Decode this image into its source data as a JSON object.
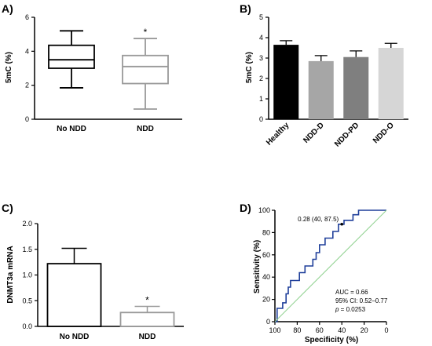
{
  "chart_data": [
    {
      "panel": "A)",
      "type": "box",
      "ylabel": "5mC (%)",
      "ylim": [
        0,
        6
      ],
      "yticks": [
        0,
        2,
        4,
        6
      ],
      "categories": [
        "No NDD",
        "NDD"
      ],
      "boxes": [
        {
          "name": "No NDD",
          "min": 1.85,
          "q1": 3.0,
          "median": 3.5,
          "q3": 4.35,
          "max": 5.2,
          "color": "#000000"
        },
        {
          "name": "NDD",
          "min": 0.6,
          "q1": 2.1,
          "median": 3.1,
          "q3": 3.75,
          "max": 4.75,
          "color": "#999999"
        }
      ],
      "annotations": [
        {
          "category": "NDD",
          "text": "*"
        }
      ]
    },
    {
      "panel": "B)",
      "type": "bar",
      "ylabel": "5mC (%)",
      "ylim": [
        0,
        5
      ],
      "yticks": [
        0,
        1,
        2,
        3,
        4,
        5
      ],
      "categories": [
        "Healthy",
        "NDD-D",
        "NDD-PD",
        "NDD-O"
      ],
      "values": [
        3.65,
        2.85,
        3.05,
        3.5
      ],
      "errors": [
        0.2,
        0.27,
        0.3,
        0.22
      ],
      "colors": [
        "#000000",
        "#a6a6a6",
        "#7f7f7f",
        "#d6d6d6"
      ]
    },
    {
      "panel": "C)",
      "type": "bar",
      "ylabel": "DNMT3a mRNA",
      "ylim": [
        0,
        2.0
      ],
      "yticks": [
        "0.0",
        "0.5",
        "1.0",
        "1.5",
        "2.0"
      ],
      "categories": [
        "No NDD",
        "NDD"
      ],
      "values": [
        1.22,
        0.27
      ],
      "errors": [
        0.3,
        0.12
      ],
      "colors": [
        "#000000",
        "#999999"
      ],
      "annotations": [
        {
          "category": "NDD",
          "text": "*"
        }
      ]
    },
    {
      "panel": "D)",
      "type": "line",
      "xlabel": "Specificity (%)",
      "ylabel": "Sensitivity (%)",
      "xlim": [
        100,
        0
      ],
      "ylim": [
        0,
        100
      ],
      "xticks": [
        100,
        80,
        60,
        40,
        20,
        0
      ],
      "yticks": [
        0,
        20,
        40,
        60,
        80,
        100
      ],
      "series": [
        {
          "color": "#1f3f9a",
          "points": [
            [
              100,
              0
            ],
            [
              98,
              0
            ],
            [
              98,
              12
            ],
            [
              93,
              12
            ],
            [
              93,
              17
            ],
            [
              90,
              17
            ],
            [
              90,
              25
            ],
            [
              88,
              25
            ],
            [
              88,
              31
            ],
            [
              86,
              31
            ],
            [
              86,
              37
            ],
            [
              78,
              37
            ],
            [
              78,
              44
            ],
            [
              73,
              44
            ],
            [
              73,
              50
            ],
            [
              66,
              50
            ],
            [
              66,
              56
            ],
            [
              63,
              56
            ],
            [
              63,
              62
            ],
            [
              60,
              62
            ],
            [
              60,
              69
            ],
            [
              55,
              69
            ],
            [
              55,
              75
            ],
            [
              48,
              75
            ],
            [
              48,
              81
            ],
            [
              43,
              81
            ],
            [
              43,
              87.5
            ],
            [
              40,
              87.5
            ],
            [
              38,
              87.5
            ],
            [
              38,
              91
            ],
            [
              30,
              91
            ],
            [
              30,
              96
            ],
            [
              25,
              96
            ],
            [
              25,
              100
            ],
            [
              0,
              100
            ]
          ]
        },
        {
          "color": "#8fd18f",
          "points": [
            [
              100,
              0
            ],
            [
              0,
              100
            ]
          ]
        }
      ],
      "point_label": {
        "x": 40,
        "y": 87.5,
        "text": "0.28 (40, 87.5)"
      },
      "stats": {
        "auc": "AUC = 0.66",
        "ci": "95% CI: 0.52–0.77",
        "p_italic": "p",
        "p_value": " = 0.0253"
      }
    }
  ]
}
